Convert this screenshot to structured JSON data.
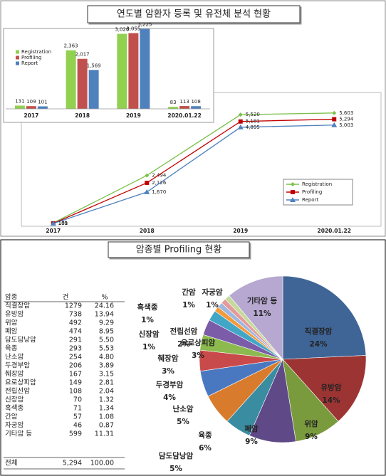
{
  "chart_data": [
    {
      "type": "line",
      "title": "연도별 암환자 등록 및 유전체 분석 현황",
      "categories": [
        "2017",
        "2018",
        "2019",
        "2020.01.22"
      ],
      "series": [
        {
          "name": "Registration",
          "color": "#7cc04a",
          "marker": "diamond",
          "values": [
            131,
            2494,
            5520,
            5603
          ],
          "value_labels": [
            "131",
            "2,494",
            "5,520",
            "5,603"
          ]
        },
        {
          "name": "Profiling",
          "color": "#c00000",
          "marker": "square",
          "values": [
            109,
            2126,
            5181,
            5294
          ],
          "value_labels": [
            "109",
            "2,126",
            "5,181",
            "5,294"
          ]
        },
        {
          "name": "Report",
          "color": "#4f81bd",
          "marker": "triangle",
          "values": [
            101,
            1670,
            4895,
            5003
          ],
          "value_labels": [
            "101",
            "1,670",
            "4,895",
            "5,003"
          ]
        }
      ],
      "ylim": [
        0,
        6500
      ],
      "legend": "lower right"
    },
    {
      "type": "bar",
      "categories": [
        "2017",
        "2018",
        "2019",
        "2020.01.22"
      ],
      "series": [
        {
          "name": "Registration",
          "color": "#92d050",
          "values": [
            131,
            2363,
            3026,
            83
          ],
          "value_labels": [
            "131",
            "2,363",
            "3,026",
            "83"
          ]
        },
        {
          "name": "Profiling",
          "color": "#c0504d",
          "values": [
            109,
            2017,
            3055,
            113
          ],
          "value_labels": [
            "109",
            "2,017",
            "3,055",
            "113"
          ]
        },
        {
          "name": "Report",
          "color": "#4f81bd",
          "values": [
            101,
            1569,
            3225,
            108
          ],
          "value_labels": [
            "101",
            "1,569",
            "3,225",
            "108"
          ]
        }
      ],
      "ylim": [
        0,
        3300
      ],
      "legend": "upper left"
    },
    {
      "type": "pie",
      "title": "암종별 Profiling 현황",
      "categories": [
        "직결장암",
        "유방암",
        "위암",
        "폐암",
        "담도담낭암",
        "육종",
        "난소암",
        "두경부암",
        "췌장암",
        "요로상피암",
        "전립선암",
        "신장암",
        "흑색종",
        "간암",
        "자궁암",
        "기타암 등"
      ],
      "values": [
        24,
        14,
        9,
        9,
        5,
        6,
        5,
        4,
        3,
        3,
        2,
        1,
        1,
        1,
        1,
        11
      ],
      "value_labels": [
        "24%",
        "14%",
        "9%",
        "9%",
        "5%",
        "6%",
        "5%",
        "4%",
        "3%",
        "3%",
        "2%",
        "1%",
        "1%",
        "1%",
        "1%",
        "11%"
      ],
      "colors": [
        "#3f6496",
        "#9b3433",
        "#7a9a3e",
        "#5f4a87",
        "#3a8ca0",
        "#d97b2c",
        "#4a78c0",
        "#c94a4a",
        "#8cba4f",
        "#7a5ca8",
        "#42a6c6",
        "#f39a3d",
        "#9db7e0",
        "#e59a9a",
        "#c4d99b",
        "#b6a8d0"
      ]
    }
  ],
  "table": {
    "columns": [
      "암종",
      "건",
      "%"
    ],
    "rows": [
      [
        "직결장암",
        "1279",
        "24.16"
      ],
      [
        "유방암",
        "738",
        "13.94"
      ],
      [
        "위암",
        "492",
        "9.29"
      ],
      [
        "폐암",
        "474",
        "8.95"
      ],
      [
        "담도담낭암",
        "291",
        "5.50"
      ],
      [
        "육종",
        "293",
        "5.53"
      ],
      [
        "난소암",
        "254",
        "4.80"
      ],
      [
        "두경부암",
        "206",
        "3.89"
      ],
      [
        "췌장암",
        "167",
        "3.15"
      ],
      [
        "요로상피암",
        "149",
        "2.81"
      ],
      [
        "전립선암",
        "108",
        "2.04"
      ],
      [
        "신장암",
        "70",
        "1.32"
      ],
      [
        "흑색종",
        "71",
        "1.34"
      ],
      [
        "간암",
        "57",
        "1.08"
      ],
      [
        "자궁암",
        "46",
        "0.87"
      ],
      [
        "기타암 등",
        "599",
        "11.31"
      ]
    ],
    "total": [
      "전체",
      "5,294",
      "100.00"
    ]
  }
}
